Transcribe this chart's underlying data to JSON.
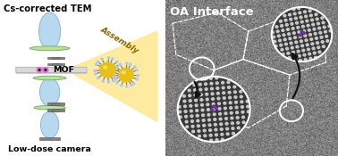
{
  "title_left": "Cs-corrected TEM",
  "label_bottom_left": "Low-dose camera",
  "label_mof": "MOF",
  "label_assembly": "Assembly",
  "label_oa": "OA Interface",
  "bg_left": "#ffffff",
  "bg_right": "#aaaaaa",
  "lens_color": "#b8d8f0",
  "lens_edge": "#88b8d8",
  "disk_color": "#b8e0a0",
  "disk_edge": "#80b060",
  "plate_color": "#d8d8d8",
  "plate_edge": "#aaaaaa",
  "plate_shadow": "#b0b0b0",
  "beam_color": "#ffe890",
  "beam_alpha": 0.85,
  "mof_gold": "#e8c018",
  "mof_gold_shine": "#f8e858",
  "mof_spike": "#5878b8",
  "mof_spike_dot": "#b8c8e8",
  "pink_particle": "#d858c0",
  "aperture_color": "#808080",
  "aperture_edge": "#505050",
  "purple_dot": "#7030a0",
  "lattice_bg": "#383838",
  "lattice_dot": "#c0c0c0",
  "white": "#ffffff",
  "black": "#111111",
  "figsize": [
    3.78,
    1.75
  ],
  "dpi": 100
}
